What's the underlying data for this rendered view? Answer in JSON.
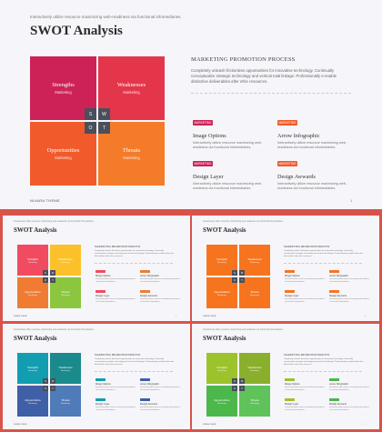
{
  "main": {
    "topline": "Interactively utilize resource maximizing web-readiness via functional infomediaries.",
    "title": "SWOT Analysis",
    "quadrants": [
      {
        "title": "Strengths",
        "sub": "Marketing"
      },
      {
        "title": "Weaknesses",
        "sub": "Marketing"
      },
      {
        "title": "Opportunities",
        "sub": "Marketing"
      },
      {
        "title": "Threats",
        "sub": "Marketing"
      }
    ],
    "letters": [
      "S",
      "W",
      "O",
      "T"
    ],
    "right_title": "MARKETING PROMOTION PROCESS",
    "right_desc": "Completely unleash frictionless opportunities for innovative technology. Continually conceptualize strategic technology and vertical total linkage. Professionally e-enable distinctive deliverables after ethic resources.",
    "items": [
      {
        "badge": "MARKETING",
        "title": "Image Options",
        "desc": "Interactively utilize resource maximizing web-readiness via functional infomediaries."
      },
      {
        "badge": "MARKETING",
        "title": "Arrow Infographic",
        "desc": "Interactively utilize resource maximizing web-readiness via functional infomediaries."
      },
      {
        "badge": "MARKETING",
        "title": "Design Layer",
        "desc": "Interactively utilize resource maximizing web-readiness via functional infomediaries."
      },
      {
        "badge": "MARKETING",
        "title": "Design Awwards",
        "desc": "Interactively utilize resource maximizing web-readiness via functional infomediaries."
      }
    ],
    "footer": "NIVARA THEME",
    "page_number": "1",
    "colors": {
      "q1": "#cc2257",
      "q2": "#e3364a",
      "q3": "#f15a2b",
      "q4": "#f47b2a",
      "badge_left": "#cc2257",
      "badge_right": "#f15a2b"
    }
  },
  "thumbnails": [
    {
      "title": "SWOT Analysis",
      "colors": [
        "#f04b60",
        "#fcc12a",
        "#f07c34",
        "#8cc63f"
      ]
    },
    {
      "title": "SWOT Analysis",
      "colors": [
        "#f7741f",
        "#f7741f",
        "#f7741f",
        "#f7741f"
      ]
    },
    {
      "title": "SWOT Analysis",
      "colors": [
        "#139db0",
        "#1a8a8c",
        "#3f5fa6",
        "#4f7bb8"
      ]
    },
    {
      "title": "SWOT Analysis",
      "colors": [
        "#9cc22c",
        "#8aaf2d",
        "#4cb74a",
        "#5fc25a"
      ]
    }
  ]
}
